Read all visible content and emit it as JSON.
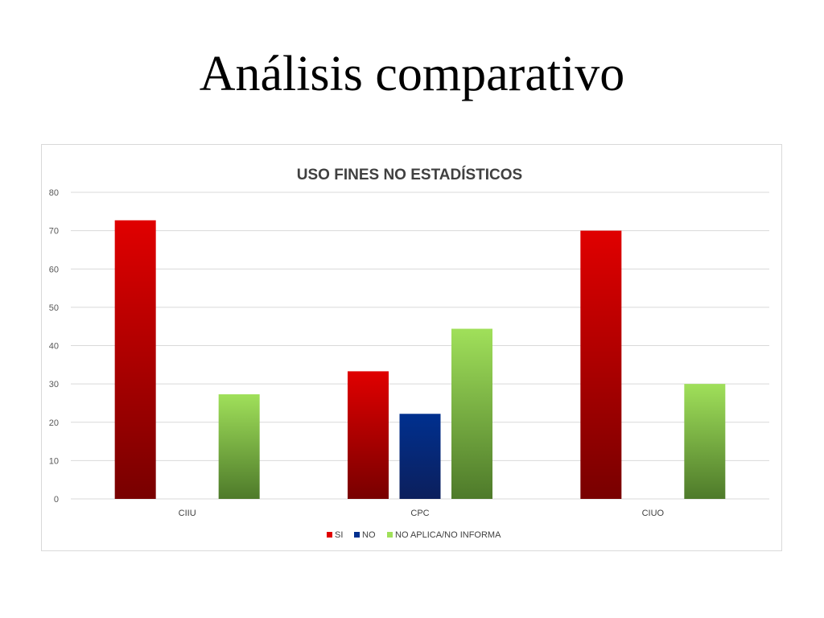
{
  "slide": {
    "title": "Análisis comparativo"
  },
  "colors": {
    "si_top": "#e00000",
    "si_bottom": "#780000",
    "no_top": "#00308f",
    "no_bottom": "#0c1f5c",
    "na_top": "#a0e05a",
    "na_bottom": "#4e7a2a",
    "grid": "#d9d9d9"
  },
  "chart_data": {
    "type": "bar",
    "title": "USO FINES NO ESTADÍSTICOS",
    "categories": [
      "CIIU",
      "CPC",
      "CIUO"
    ],
    "series": [
      {
        "name": "SI",
        "values": [
          72.7,
          33.3,
          70.0
        ]
      },
      {
        "name": "NO",
        "values": [
          0,
          22.2,
          0
        ]
      },
      {
        "name": "NO APLICA/NO INFORMA",
        "values": [
          27.3,
          44.4,
          30.0
        ]
      }
    ],
    "ylim": [
      0,
      80
    ],
    "yticks": [
      "0",
      "10",
      "20",
      "30",
      "40",
      "50",
      "60",
      "70",
      "80"
    ],
    "grid": true,
    "legend": "bottom"
  }
}
